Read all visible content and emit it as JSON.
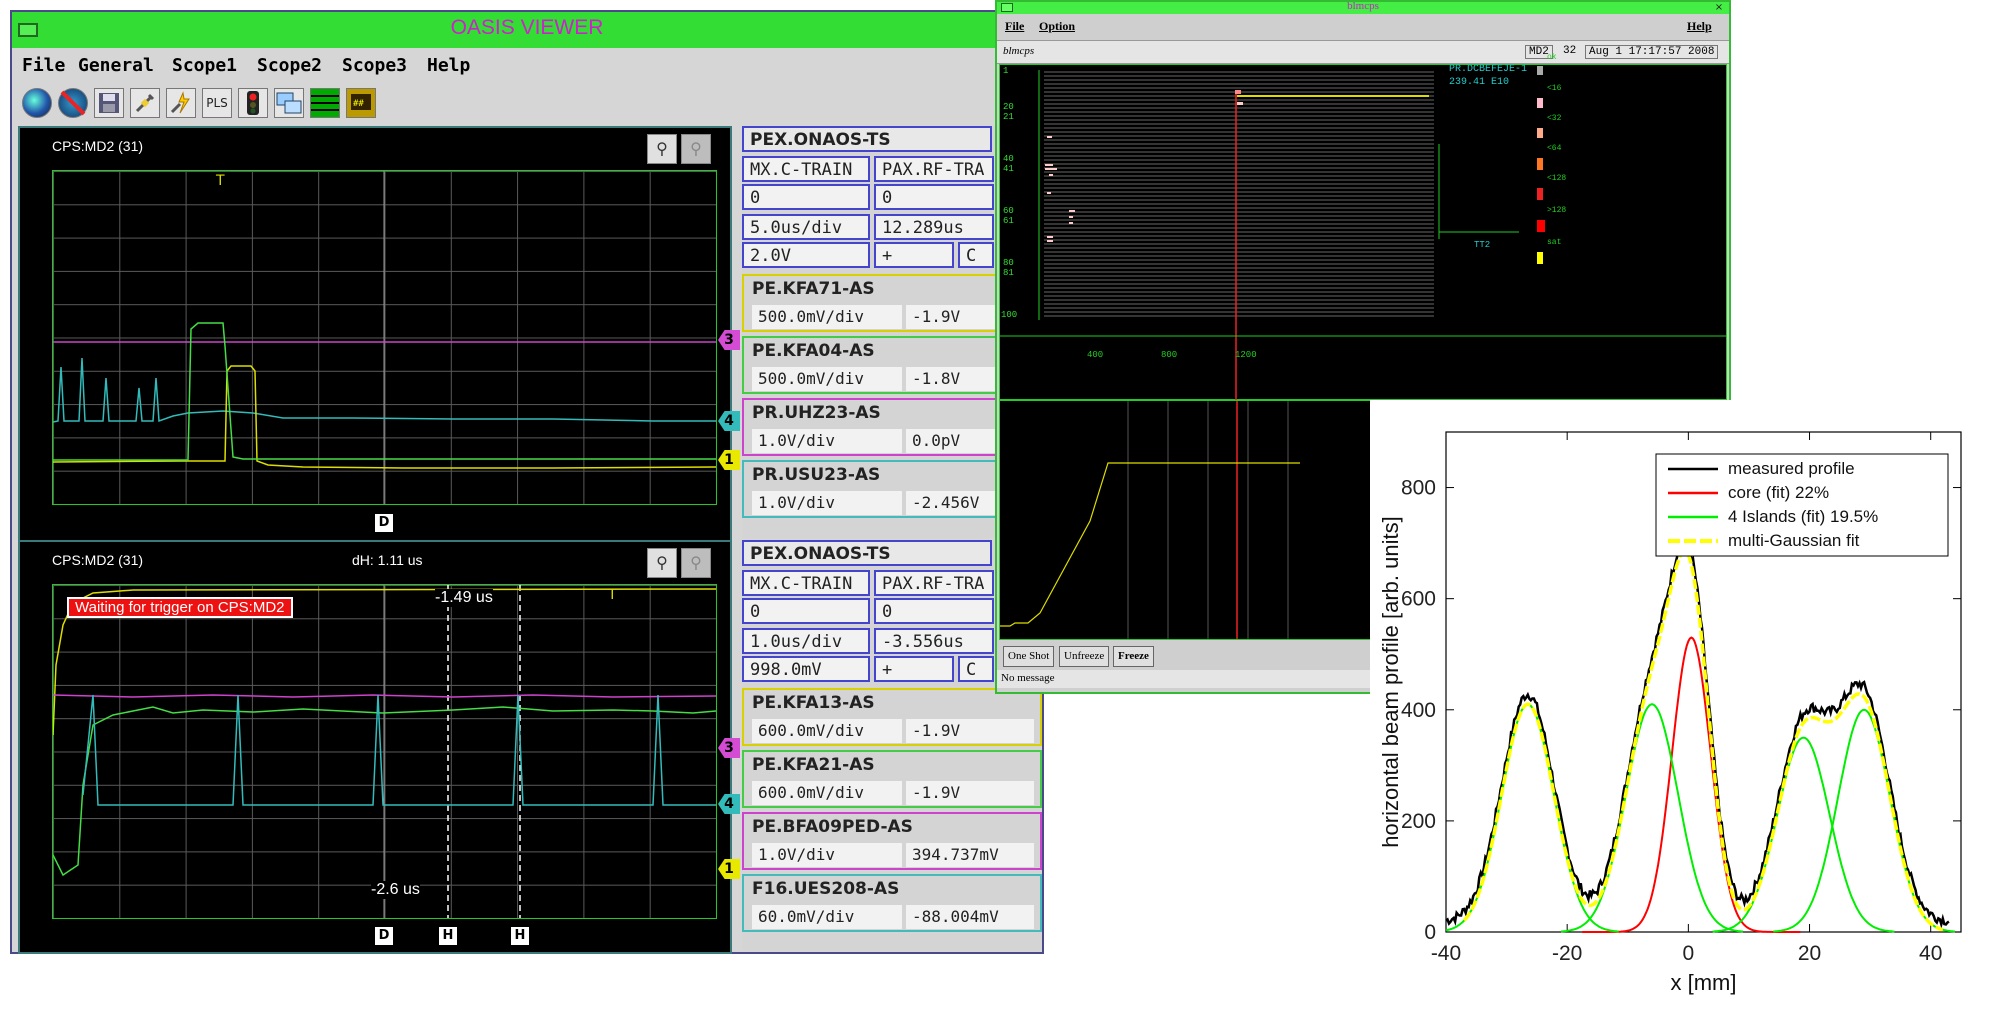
{
  "oasis": {
    "title": "OASIS VIEWER",
    "menu": [
      "File",
      "General",
      "Scope1",
      "Scope2",
      "Scope3",
      "Help"
    ],
    "toolbar_icons": [
      "globe-icon",
      "no-globe-icon",
      "save-icon",
      "plug-icon",
      "plug-flash-icon",
      "pls-button",
      "traffic-light-icon",
      "windows-icon",
      "lines-icon",
      "display-icon"
    ],
    "toolbar_pls": "PLS",
    "scope1": {
      "title": "CPS:MD2 (31)",
      "trigger_mark": "T",
      "markers": [
        "3",
        "4",
        "1"
      ],
      "bottom_marker": "D",
      "header": "PEX.ONAOS-TS",
      "row1": [
        "MX.C-TRAIN",
        "PAX.RF-TRA"
      ],
      "row2": [
        "0",
        "0"
      ],
      "row3": [
        "5.0us/div",
        "12.289us"
      ],
      "row4": [
        "2.0V",
        "+",
        "C"
      ],
      "channels": [
        {
          "name": "PE.KFA71-AS",
          "scale": "500.0mV/div",
          "offset": "-1.9V",
          "color": "#d8d000"
        },
        {
          "name": "PE.KFA04-AS",
          "scale": "500.0mV/div",
          "offset": "-1.8V",
          "color": "#44cc44"
        },
        {
          "name": "PR.UHZ23-AS",
          "scale": "1.0V/div",
          "offset": "0.0pV",
          "color": "#cc44cc"
        },
        {
          "name": "PR.USU23-AS",
          "scale": "1.0V/div",
          "offset": "-2.456V",
          "color": "#44bbbb"
        }
      ]
    },
    "scope2": {
      "title": "CPS:MD2 (31)",
      "dh": "dH: 1.11 us",
      "waiting": "Waiting for trigger on CPS:MD2",
      "cursor_top": "-1.49 us",
      "cursor_bottom": "-2.6 us",
      "trigger_mark": "T",
      "markers": [
        "3",
        "4",
        "1"
      ],
      "bottom_markers": [
        "D",
        "H",
        "H"
      ],
      "header": "PEX.ONAOS-TS",
      "row1": [
        "MX.C-TRAIN",
        "PAX.RF-TRA"
      ],
      "row2": [
        "0",
        "0"
      ],
      "row3": [
        "1.0us/div",
        "-3.556us"
      ],
      "row4": [
        "998.0mV",
        "+",
        "C"
      ],
      "channels": [
        {
          "name": "PE.KFA13-AS",
          "scale": "600.0mV/div",
          "offset": "-1.9V",
          "color": "#d8d000"
        },
        {
          "name": "PE.KFA21-AS",
          "scale": "600.0mV/div",
          "offset": "-1.9V",
          "color": "#44cc44"
        },
        {
          "name": "PE.BFA09PED-AS",
          "scale": "1.0V/div",
          "offset": "394.737mV",
          "color": "#cc44cc"
        },
        {
          "name": "F16.UES208-AS",
          "scale": "60.0mV/div",
          "offset": "-88.004mV",
          "color": "#44bbbb"
        }
      ]
    }
  },
  "blm": {
    "title": "blmcps",
    "menu": [
      "File",
      "Option"
    ],
    "help": "Help",
    "app_label": "blmcps",
    "status": [
      "MD2",
      "32",
      "Aug  1 17:17:57 2008"
    ],
    "info_lines": [
      "PR.DCBEFEJE-1",
      "239.41 E10"
    ],
    "y_labels": [
      "1",
      "20\n21",
      "40\n41",
      "60\n61",
      "80\n81",
      "100"
    ],
    "legend_labels": [
      "ok",
      "<16",
      "<32",
      "<64",
      "<128",
      ">128",
      "sat"
    ],
    "sub_label": "TT2",
    "x_ticks": [
      "400",
      "800",
      "1200"
    ],
    "buttons": [
      "One Shot",
      "Unfreeze",
      "Freeze"
    ],
    "message": "No message"
  },
  "chart_data": {
    "type": "line",
    "xlabel": "x [mm]",
    "ylabel": "horizontal beam profile [arb. units]",
    "xlim": [
      -40,
      45
    ],
    "ylim": [
      0,
      900
    ],
    "xticks": [
      -40,
      -20,
      0,
      20,
      40
    ],
    "yticks": [
      0,
      200,
      400,
      600,
      800
    ],
    "legend_position": "top-right",
    "series": [
      {
        "name": "measured profile",
        "color": "#000000",
        "style": "solid"
      },
      {
        "name": "core (fit)  22%",
        "color": "#ff0000",
        "style": "solid"
      },
      {
        "name": "4 Islands (fit)  19.5%",
        "color": "#00ee00",
        "style": "solid"
      },
      {
        "name": "multi-Gaussian fit",
        "color": "#ffff00",
        "style": "dashed"
      }
    ],
    "gaussians": {
      "core": [
        {
          "mu": 0.5,
          "amp": 530,
          "sigma": 3.2
        }
      ],
      "islands": [
        {
          "mu": -26.5,
          "amp": 410,
          "sigma": 4.3
        },
        {
          "mu": -6.0,
          "amp": 410,
          "sigma": 4.3
        },
        {
          "mu": 19.0,
          "amp": 350,
          "sigma": 4.3
        },
        {
          "mu": 29.0,
          "amp": 400,
          "sigma": 4.3
        }
      ]
    }
  }
}
